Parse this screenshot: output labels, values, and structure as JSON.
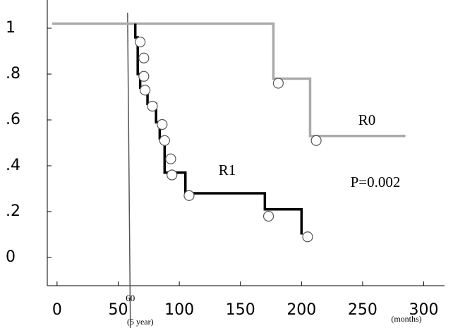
{
  "chart_data": {
    "type": "step",
    "xlim": [
      -8,
      317
    ],
    "ylim": [
      -0.123,
      1.123
    ],
    "xticks": [
      0,
      50,
      100,
      150,
      200,
      250,
      300
    ],
    "yticks": [
      {
        "value": 0,
        "label": "0"
      },
      {
        "value": 0.2,
        "label": ".2"
      },
      {
        "value": 0.4,
        "label": ".4"
      },
      {
        "value": 0.6,
        "label": ".6"
      },
      {
        "value": 0.8,
        "label": ".8"
      },
      {
        "value": 1,
        "label": "1"
      }
    ],
    "x_unit": "(months)",
    "reference_line": {
      "x": 60,
      "label": "60",
      "sublabel": "(5 year)",
      "color": "#555555"
    },
    "series": [
      {
        "name": "R0",
        "color": "#aaaaaa",
        "x": [
          -4,
          177,
          177,
          207,
          207,
          285
        ],
        "values": [
          1.02,
          1.02,
          0.78,
          0.78,
          0.53,
          0.53
        ],
        "censored": {
          "x": [
            181,
            212
          ],
          "values": [
            0.76,
            0.51
          ]
        }
      },
      {
        "name": "R1",
        "color": "#000000",
        "x": [
          64,
          64,
          66,
          66,
          68,
          68,
          74,
          74,
          81,
          81,
          84,
          84,
          88,
          88,
          105,
          105,
          170,
          170,
          200,
          200
        ],
        "values": [
          1.02,
          0.96,
          0.96,
          0.8,
          0.8,
          0.74,
          0.74,
          0.67,
          0.67,
          0.59,
          0.59,
          0.52,
          0.52,
          0.37,
          0.37,
          0.28,
          0.28,
          0.21,
          0.21,
          0.1
        ],
        "censored": {
          "x": [
            68,
            71,
            71,
            72,
            78,
            86,
            88,
            93,
            94,
            108,
            173,
            205
          ],
          "values": [
            0.94,
            0.87,
            0.79,
            0.73,
            0.66,
            0.58,
            0.51,
            0.43,
            0.36,
            0.27,
            0.18,
            0.09
          ]
        }
      }
    ],
    "annotation": "P=0.002"
  }
}
